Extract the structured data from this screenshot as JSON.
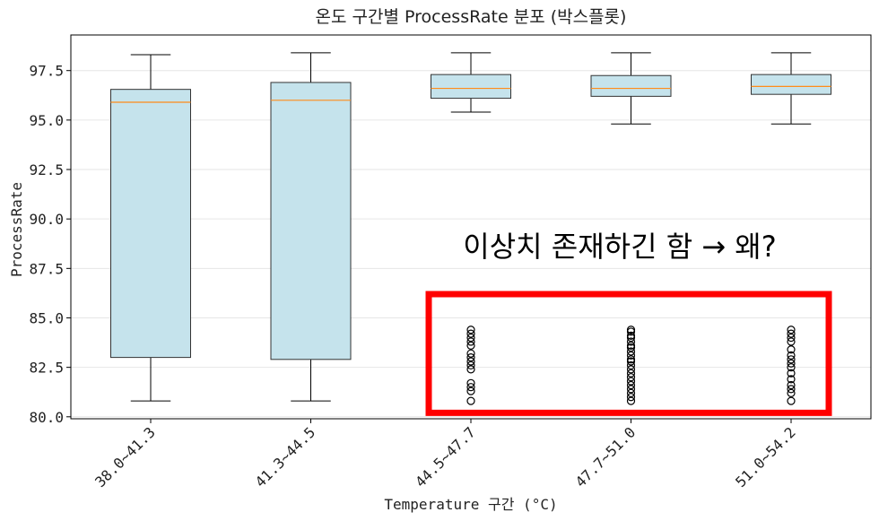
{
  "chart_data": {
    "type": "box",
    "title": "온도 구간별 ProcessRate 분포 (박스플롯)",
    "xlabel": "Temperature 구간 (°C)",
    "ylabel": "ProcessRate",
    "ylim": [
      79.9,
      99.3
    ],
    "yticks": [
      "80.0",
      "82.5",
      "85.0",
      "87.5",
      "90.0",
      "92.5",
      "95.0",
      "97.5"
    ],
    "ytick_values": [
      80.0,
      82.5,
      85.0,
      87.5,
      90.0,
      92.5,
      95.0,
      97.5
    ],
    "grid": "y",
    "categories": [
      "38.0~41.3",
      "41.3~44.5",
      "44.5~47.7",
      "47.7~51.0",
      "51.0~54.2"
    ],
    "boxes": [
      {
        "whislo": 80.8,
        "q1": 83.0,
        "med": 95.9,
        "q3": 96.55,
        "whishi": 98.3,
        "fliers": []
      },
      {
        "whislo": 80.8,
        "q1": 82.9,
        "med": 96.0,
        "q3": 96.9,
        "whishi": 98.4,
        "fliers": []
      },
      {
        "whislo": 95.4,
        "q1": 96.1,
        "med": 96.6,
        "q3": 97.3,
        "whishi": 98.4,
        "fliers": [
          84.4,
          84.2,
          84.0,
          83.8,
          83.6,
          83.2,
          83.0,
          82.8,
          82.6,
          82.4,
          81.7,
          81.5,
          81.3,
          80.8
        ]
      },
      {
        "whislo": 94.8,
        "q1": 96.2,
        "med": 96.6,
        "q3": 97.25,
        "whishi": 98.4,
        "fliers": [
          84.4,
          84.3,
          84.1,
          84.0,
          83.8,
          83.6,
          83.5,
          83.3,
          83.1,
          82.9,
          82.8,
          82.6,
          82.4,
          82.2,
          82.0,
          81.8,
          81.6,
          81.4,
          81.2,
          81.0,
          80.8
        ]
      },
      {
        "whislo": 94.8,
        "q1": 96.3,
        "med": 96.7,
        "q3": 97.3,
        "whishi": 98.4,
        "fliers": [
          84.4,
          84.2,
          84.0,
          83.8,
          83.4,
          83.1,
          82.9,
          82.7,
          82.5,
          82.2,
          81.9,
          81.6,
          81.4,
          81.2,
          80.8
        ]
      }
    ],
    "colors": {
      "box_fill": "#c5e3ec",
      "box_edge": "#333333",
      "median": "#ff8c1a",
      "highlight": "#ff0000"
    },
    "annotation": {
      "text": "이상치 존재하긴 함 → 왜?"
    },
    "highlight": {
      "from_category": 2,
      "to_category": 4,
      "y_range": [
        80.2,
        86.2
      ],
      "color": "#ff0000"
    }
  }
}
